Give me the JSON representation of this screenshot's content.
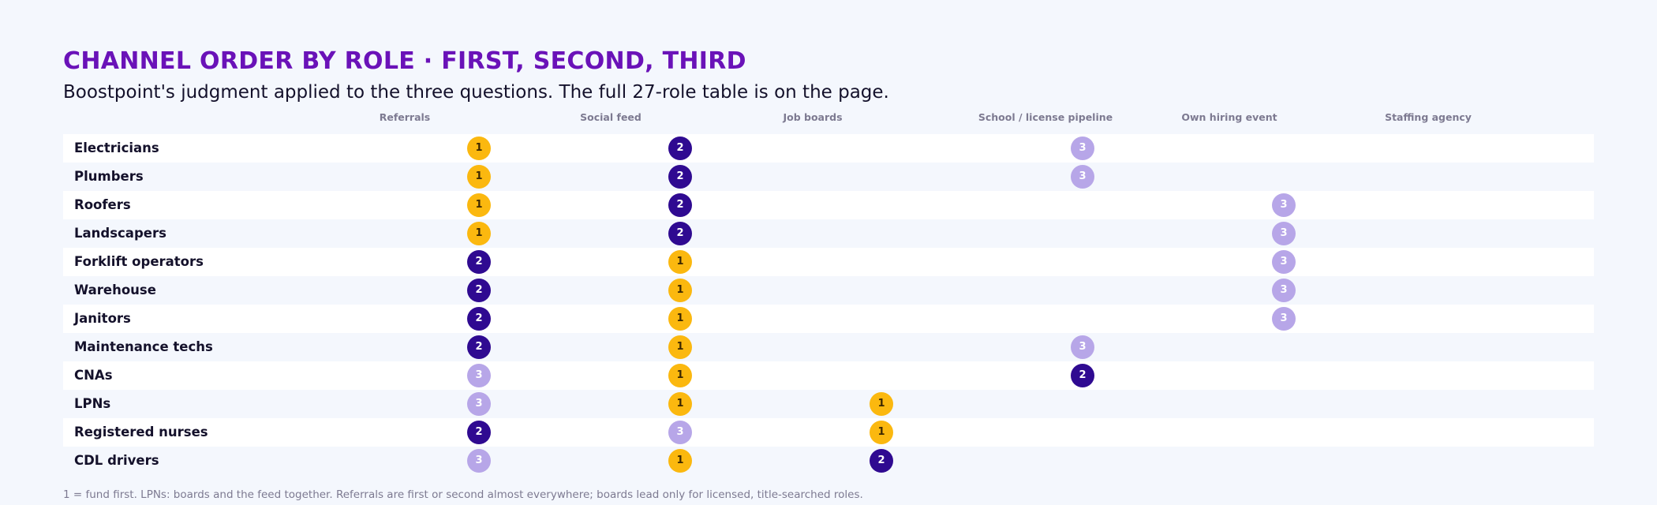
{
  "header": {
    "title": "CHANNEL ORDER BY ROLE · FIRST, SECOND, THIRD",
    "subtitle": "Boostpoint's judgment applied to the three questions. The full 27-role table is on the page."
  },
  "footnote": "1 = fund first. LPNs: boards and the feed together. Referrals are first or second almost everywhere; boards lead only for licensed, title-searched roles.",
  "colors": {
    "title": "#6a12b8",
    "rank_1": "#fbb80f",
    "rank_2": "#2f0a91",
    "rank_3": "#b7a6e8",
    "row_alt": "#ffffff"
  },
  "chart_data": {
    "type": "table",
    "columns": [
      "Referrals",
      "Social feed",
      "Job boards",
      "School / license pipeline",
      "Own hiring event",
      "Staffing agency"
    ],
    "rows": [
      {
        "role": "Electricians",
        "ranks": [
          1,
          2,
          null,
          3,
          null,
          null
        ]
      },
      {
        "role": "Plumbers",
        "ranks": [
          1,
          2,
          null,
          3,
          null,
          null
        ]
      },
      {
        "role": "Roofers",
        "ranks": [
          1,
          2,
          null,
          null,
          3,
          null
        ]
      },
      {
        "role": "Landscapers",
        "ranks": [
          1,
          2,
          null,
          null,
          3,
          null
        ]
      },
      {
        "role": "Forklift operators",
        "ranks": [
          2,
          1,
          null,
          null,
          3,
          null
        ]
      },
      {
        "role": "Warehouse",
        "ranks": [
          2,
          1,
          null,
          null,
          3,
          null
        ]
      },
      {
        "role": "Janitors",
        "ranks": [
          2,
          1,
          null,
          null,
          3,
          null
        ]
      },
      {
        "role": "Maintenance techs",
        "ranks": [
          2,
          1,
          null,
          3,
          null,
          null
        ]
      },
      {
        "role": "CNAs",
        "ranks": [
          3,
          1,
          null,
          2,
          null,
          null
        ]
      },
      {
        "role": "LPNs",
        "ranks": [
          3,
          1,
          1,
          null,
          null,
          null
        ]
      },
      {
        "role": "Registered nurses",
        "ranks": [
          2,
          3,
          1,
          null,
          null,
          null
        ]
      },
      {
        "role": "CDL drivers",
        "ranks": [
          3,
          1,
          2,
          null,
          null,
          null
        ]
      }
    ]
  }
}
